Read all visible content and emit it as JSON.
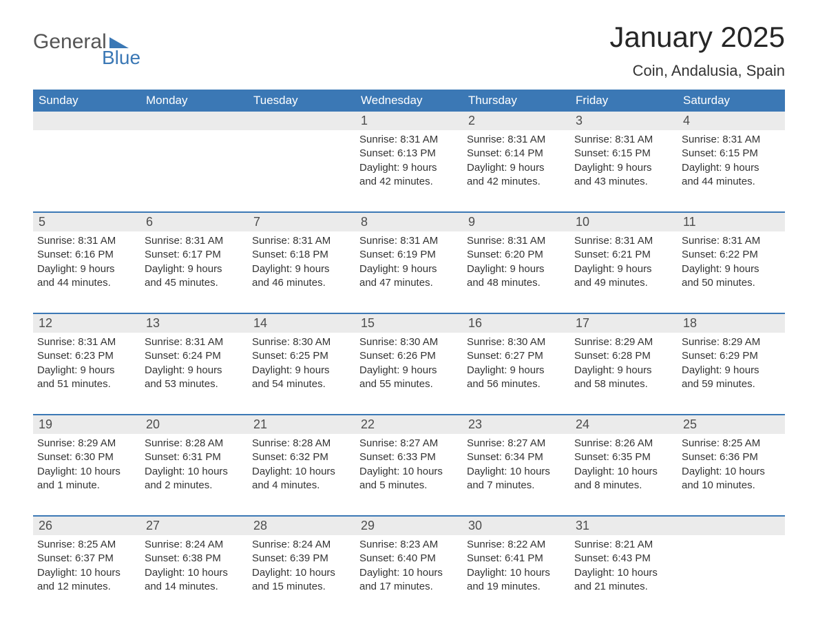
{
  "logo": {
    "general": "General",
    "blue": "Blue"
  },
  "title": "January 2025",
  "subtitle": "Coin, Andalusia, Spain",
  "colors": {
    "header_bg": "#3b78b5",
    "header_text": "#ffffff",
    "daynum_bg": "#ebebeb",
    "daynum_text": "#4d4d4d",
    "body_text": "#333333",
    "week_divider": "#3b78b5",
    "page_bg": "#ffffff"
  },
  "typography": {
    "title_fontsize": 42,
    "subtitle_fontsize": 22,
    "dow_fontsize": 17,
    "daynum_fontsize": 18,
    "body_fontsize": 15
  },
  "days_of_week": [
    "Sunday",
    "Monday",
    "Tuesday",
    "Wednesday",
    "Thursday",
    "Friday",
    "Saturday"
  ],
  "weeks": [
    [
      {
        "num": "",
        "sunrise": "",
        "sunset": "",
        "daylight1": "",
        "daylight2": ""
      },
      {
        "num": "",
        "sunrise": "",
        "sunset": "",
        "daylight1": "",
        "daylight2": ""
      },
      {
        "num": "",
        "sunrise": "",
        "sunset": "",
        "daylight1": "",
        "daylight2": ""
      },
      {
        "num": "1",
        "sunrise": "Sunrise: 8:31 AM",
        "sunset": "Sunset: 6:13 PM",
        "daylight1": "Daylight: 9 hours",
        "daylight2": "and 42 minutes."
      },
      {
        "num": "2",
        "sunrise": "Sunrise: 8:31 AM",
        "sunset": "Sunset: 6:14 PM",
        "daylight1": "Daylight: 9 hours",
        "daylight2": "and 42 minutes."
      },
      {
        "num": "3",
        "sunrise": "Sunrise: 8:31 AM",
        "sunset": "Sunset: 6:15 PM",
        "daylight1": "Daylight: 9 hours",
        "daylight2": "and 43 minutes."
      },
      {
        "num": "4",
        "sunrise": "Sunrise: 8:31 AM",
        "sunset": "Sunset: 6:15 PM",
        "daylight1": "Daylight: 9 hours",
        "daylight2": "and 44 minutes."
      }
    ],
    [
      {
        "num": "5",
        "sunrise": "Sunrise: 8:31 AM",
        "sunset": "Sunset: 6:16 PM",
        "daylight1": "Daylight: 9 hours",
        "daylight2": "and 44 minutes."
      },
      {
        "num": "6",
        "sunrise": "Sunrise: 8:31 AM",
        "sunset": "Sunset: 6:17 PM",
        "daylight1": "Daylight: 9 hours",
        "daylight2": "and 45 minutes."
      },
      {
        "num": "7",
        "sunrise": "Sunrise: 8:31 AM",
        "sunset": "Sunset: 6:18 PM",
        "daylight1": "Daylight: 9 hours",
        "daylight2": "and 46 minutes."
      },
      {
        "num": "8",
        "sunrise": "Sunrise: 8:31 AM",
        "sunset": "Sunset: 6:19 PM",
        "daylight1": "Daylight: 9 hours",
        "daylight2": "and 47 minutes."
      },
      {
        "num": "9",
        "sunrise": "Sunrise: 8:31 AM",
        "sunset": "Sunset: 6:20 PM",
        "daylight1": "Daylight: 9 hours",
        "daylight2": "and 48 minutes."
      },
      {
        "num": "10",
        "sunrise": "Sunrise: 8:31 AM",
        "sunset": "Sunset: 6:21 PM",
        "daylight1": "Daylight: 9 hours",
        "daylight2": "and 49 minutes."
      },
      {
        "num": "11",
        "sunrise": "Sunrise: 8:31 AM",
        "sunset": "Sunset: 6:22 PM",
        "daylight1": "Daylight: 9 hours",
        "daylight2": "and 50 minutes."
      }
    ],
    [
      {
        "num": "12",
        "sunrise": "Sunrise: 8:31 AM",
        "sunset": "Sunset: 6:23 PM",
        "daylight1": "Daylight: 9 hours",
        "daylight2": "and 51 minutes."
      },
      {
        "num": "13",
        "sunrise": "Sunrise: 8:31 AM",
        "sunset": "Sunset: 6:24 PM",
        "daylight1": "Daylight: 9 hours",
        "daylight2": "and 53 minutes."
      },
      {
        "num": "14",
        "sunrise": "Sunrise: 8:30 AM",
        "sunset": "Sunset: 6:25 PM",
        "daylight1": "Daylight: 9 hours",
        "daylight2": "and 54 minutes."
      },
      {
        "num": "15",
        "sunrise": "Sunrise: 8:30 AM",
        "sunset": "Sunset: 6:26 PM",
        "daylight1": "Daylight: 9 hours",
        "daylight2": "and 55 minutes."
      },
      {
        "num": "16",
        "sunrise": "Sunrise: 8:30 AM",
        "sunset": "Sunset: 6:27 PM",
        "daylight1": "Daylight: 9 hours",
        "daylight2": "and 56 minutes."
      },
      {
        "num": "17",
        "sunrise": "Sunrise: 8:29 AM",
        "sunset": "Sunset: 6:28 PM",
        "daylight1": "Daylight: 9 hours",
        "daylight2": "and 58 minutes."
      },
      {
        "num": "18",
        "sunrise": "Sunrise: 8:29 AM",
        "sunset": "Sunset: 6:29 PM",
        "daylight1": "Daylight: 9 hours",
        "daylight2": "and 59 minutes."
      }
    ],
    [
      {
        "num": "19",
        "sunrise": "Sunrise: 8:29 AM",
        "sunset": "Sunset: 6:30 PM",
        "daylight1": "Daylight: 10 hours",
        "daylight2": "and 1 minute."
      },
      {
        "num": "20",
        "sunrise": "Sunrise: 8:28 AM",
        "sunset": "Sunset: 6:31 PM",
        "daylight1": "Daylight: 10 hours",
        "daylight2": "and 2 minutes."
      },
      {
        "num": "21",
        "sunrise": "Sunrise: 8:28 AM",
        "sunset": "Sunset: 6:32 PM",
        "daylight1": "Daylight: 10 hours",
        "daylight2": "and 4 minutes."
      },
      {
        "num": "22",
        "sunrise": "Sunrise: 8:27 AM",
        "sunset": "Sunset: 6:33 PM",
        "daylight1": "Daylight: 10 hours",
        "daylight2": "and 5 minutes."
      },
      {
        "num": "23",
        "sunrise": "Sunrise: 8:27 AM",
        "sunset": "Sunset: 6:34 PM",
        "daylight1": "Daylight: 10 hours",
        "daylight2": "and 7 minutes."
      },
      {
        "num": "24",
        "sunrise": "Sunrise: 8:26 AM",
        "sunset": "Sunset: 6:35 PM",
        "daylight1": "Daylight: 10 hours",
        "daylight2": "and 8 minutes."
      },
      {
        "num": "25",
        "sunrise": "Sunrise: 8:25 AM",
        "sunset": "Sunset: 6:36 PM",
        "daylight1": "Daylight: 10 hours",
        "daylight2": "and 10 minutes."
      }
    ],
    [
      {
        "num": "26",
        "sunrise": "Sunrise: 8:25 AM",
        "sunset": "Sunset: 6:37 PM",
        "daylight1": "Daylight: 10 hours",
        "daylight2": "and 12 minutes."
      },
      {
        "num": "27",
        "sunrise": "Sunrise: 8:24 AM",
        "sunset": "Sunset: 6:38 PM",
        "daylight1": "Daylight: 10 hours",
        "daylight2": "and 14 minutes."
      },
      {
        "num": "28",
        "sunrise": "Sunrise: 8:24 AM",
        "sunset": "Sunset: 6:39 PM",
        "daylight1": "Daylight: 10 hours",
        "daylight2": "and 15 minutes."
      },
      {
        "num": "29",
        "sunrise": "Sunrise: 8:23 AM",
        "sunset": "Sunset: 6:40 PM",
        "daylight1": "Daylight: 10 hours",
        "daylight2": "and 17 minutes."
      },
      {
        "num": "30",
        "sunrise": "Sunrise: 8:22 AM",
        "sunset": "Sunset: 6:41 PM",
        "daylight1": "Daylight: 10 hours",
        "daylight2": "and 19 minutes."
      },
      {
        "num": "31",
        "sunrise": "Sunrise: 8:21 AM",
        "sunset": "Sunset: 6:43 PM",
        "daylight1": "Daylight: 10 hours",
        "daylight2": "and 21 minutes."
      },
      {
        "num": "",
        "sunrise": "",
        "sunset": "",
        "daylight1": "",
        "daylight2": ""
      }
    ]
  ]
}
